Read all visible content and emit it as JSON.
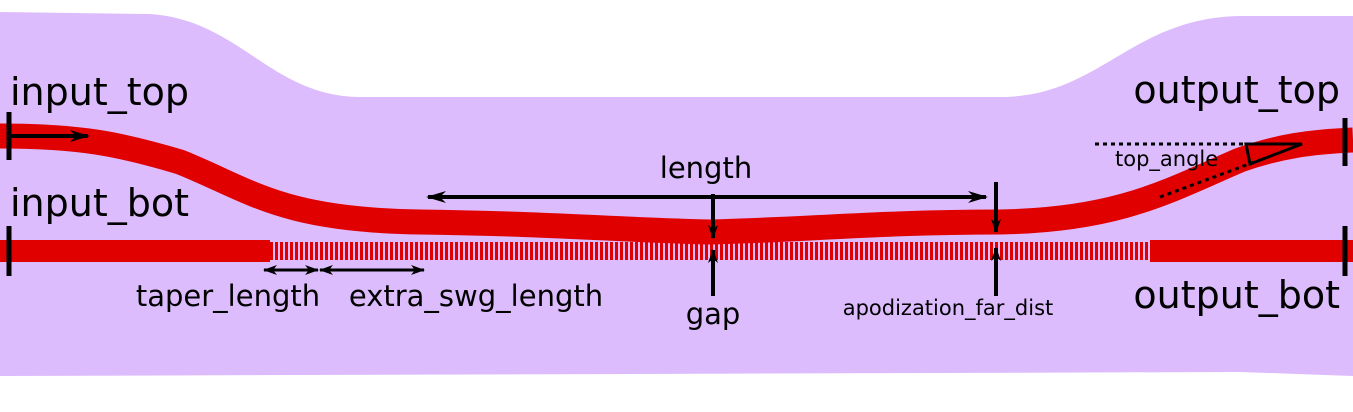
{
  "colors": {
    "cladding": "#dcbcfc",
    "waveguide": "#e00000",
    "annotation": "#000000"
  },
  "ports": {
    "input_top": "input_top",
    "input_bot": "input_bot",
    "output_top": "output_top",
    "output_bot": "output_bot"
  },
  "dimensions": {
    "length": "length",
    "gap": "gap",
    "taper_length": "taper_length",
    "extra_swg_length": "extra_swg_length",
    "apodization_far_dist": "apodization_far_dist",
    "top_angle": "top_angle"
  }
}
